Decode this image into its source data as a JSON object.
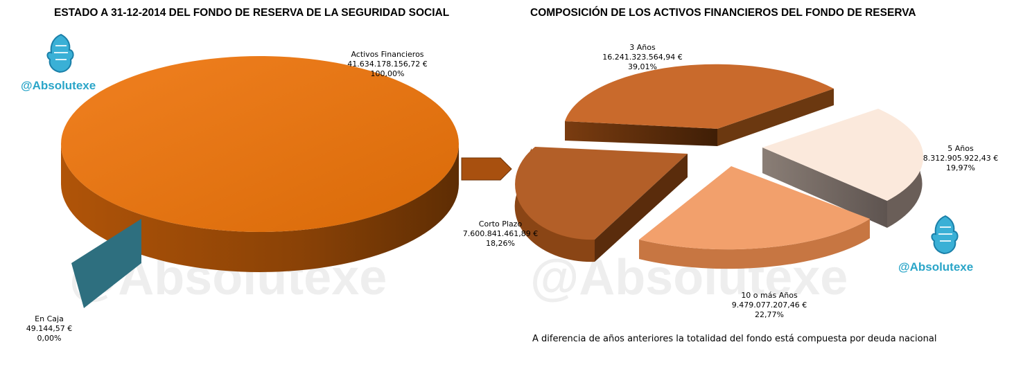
{
  "branding": {
    "handle": "@Absolutexe",
    "watermark": "@Absolutexe",
    "logo_icon": "griffin-icon",
    "accent_color": "#2aa5c8"
  },
  "note": "A diferencia de años anteriores la totalidad del fondo está compuesta por deuda nacional",
  "chart_data": [
    {
      "type": "pie",
      "title": "ESTADO A 31-12-2014 DEL FONDO DE RESERVA DE LA SEGURIDAD SOCIAL",
      "style": "3d-exploded",
      "slices": [
        {
          "label": "Activos Financieros",
          "value_text": "41.634.178.156,72 €",
          "value": 41634178156.72,
          "percent_text": "100,00%",
          "percent": 100.0,
          "color": "#e07010"
        },
        {
          "label": "En Caja",
          "value_text": "49.144,57 €",
          "value": 49144.57,
          "percent_text": "0,00%",
          "percent": 0.0,
          "color": "#2e6f7f"
        }
      ]
    },
    {
      "type": "pie",
      "title": "COMPOSICIÓN DE LOS ACTIVOS FINANCIEROS DEL FONDO DE RESERVA",
      "style": "3d-exploded",
      "slices": [
        {
          "label": "3 Años",
          "value_text": "16.241.323.564,94 €",
          "value": 16241323564.94,
          "percent_text": "39,01%",
          "percent": 39.01,
          "color": "#c96a2c"
        },
        {
          "label": "5 Años",
          "value_text": "8.312.905.922,43 €",
          "value": 8312905922.43,
          "percent_text": "19,97%",
          "percent": 19.97,
          "color": "#fbe9dc"
        },
        {
          "label": "10 o más Años",
          "value_text": "9.479.077.207,46 €",
          "value": 9479077207.46,
          "percent_text": "22,77%",
          "percent": 22.77,
          "color": "#f2a06c"
        },
        {
          "label": "Corto Plazo",
          "value_text": "7.600.841.461,89 €",
          "value": 7600841461.89,
          "percent_text": "18,26%",
          "percent": 18.26,
          "color": "#b35f28"
        }
      ]
    }
  ]
}
